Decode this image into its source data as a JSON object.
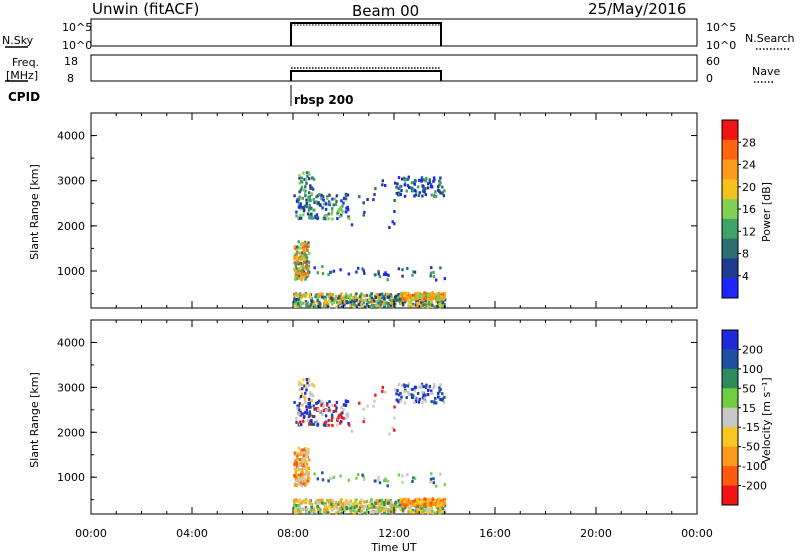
{
  "header": {
    "radar": "Unwin (fitACF)",
    "beam": "Beam 00",
    "date": "25/May/2016"
  },
  "top_panels": {
    "nsky": {
      "label": "N.Sky",
      "ticks": [
        "10^5",
        "10^0"
      ],
      "right_label": "N.Search",
      "right_ticks": [
        "10^5",
        "10^0"
      ]
    },
    "freq": {
      "label_line1": "Freq.",
      "label_line2": "[MHz]",
      "ticks": [
        "18",
        "8"
      ],
      "right_label": "Nave",
      "right_ticks": [
        "60",
        "0"
      ]
    },
    "cpid": {
      "label": "CPID",
      "program": "rbsp 200"
    }
  },
  "x_axis": {
    "label": "Time UT",
    "ticks": [
      "00:00",
      "04:00",
      "08:00",
      "12:00",
      "16:00",
      "20:00",
      "00:00"
    ]
  },
  "chart_data": [
    {
      "type": "heatmap",
      "parameter": "Power",
      "ylabel": "Slant Range [km]",
      "yticks": [
        "1000",
        "2000",
        "3000",
        "4000"
      ],
      "ylim": [
        180,
        4500
      ],
      "xlim_hours": [
        0,
        24
      ],
      "data_time_range_hours": [
        8,
        14
      ],
      "colorbar": {
        "label": "Power [dB]",
        "ticks": [
          "4",
          "8",
          "12",
          "16",
          "20",
          "24",
          "28"
        ],
        "range": [
          0,
          32
        ],
        "colors": [
          "#1f24ff",
          "#1e3c8f",
          "#2c6f73",
          "#3fa266",
          "#7fd054",
          "#f4c21a",
          "#ff9a1d",
          "#ff6411",
          "#f01414"
        ]
      }
    },
    {
      "type": "heatmap",
      "parameter": "Velocity",
      "ylabel": "Slant Range [km]",
      "yticks": [
        "1000",
        "2000",
        "3000",
        "4000"
      ],
      "ylim": [
        180,
        4500
      ],
      "xlim_hours": [
        0,
        24
      ],
      "data_time_range_hours": [
        8,
        14
      ],
      "colorbar": {
        "label": "Velocity [m s⁻¹]",
        "ticks": [
          "200",
          "100",
          "50",
          "15",
          "-15",
          "-50",
          "-100",
          "-200"
        ],
        "colors": [
          "#1e2ad8",
          "#1e4fa0",
          "#2f8a5c",
          "#6fcf41",
          "#c8c8c8",
          "#f9c820",
          "#ff9a1d",
          "#ff5a10",
          "#f01414"
        ]
      }
    }
  ]
}
